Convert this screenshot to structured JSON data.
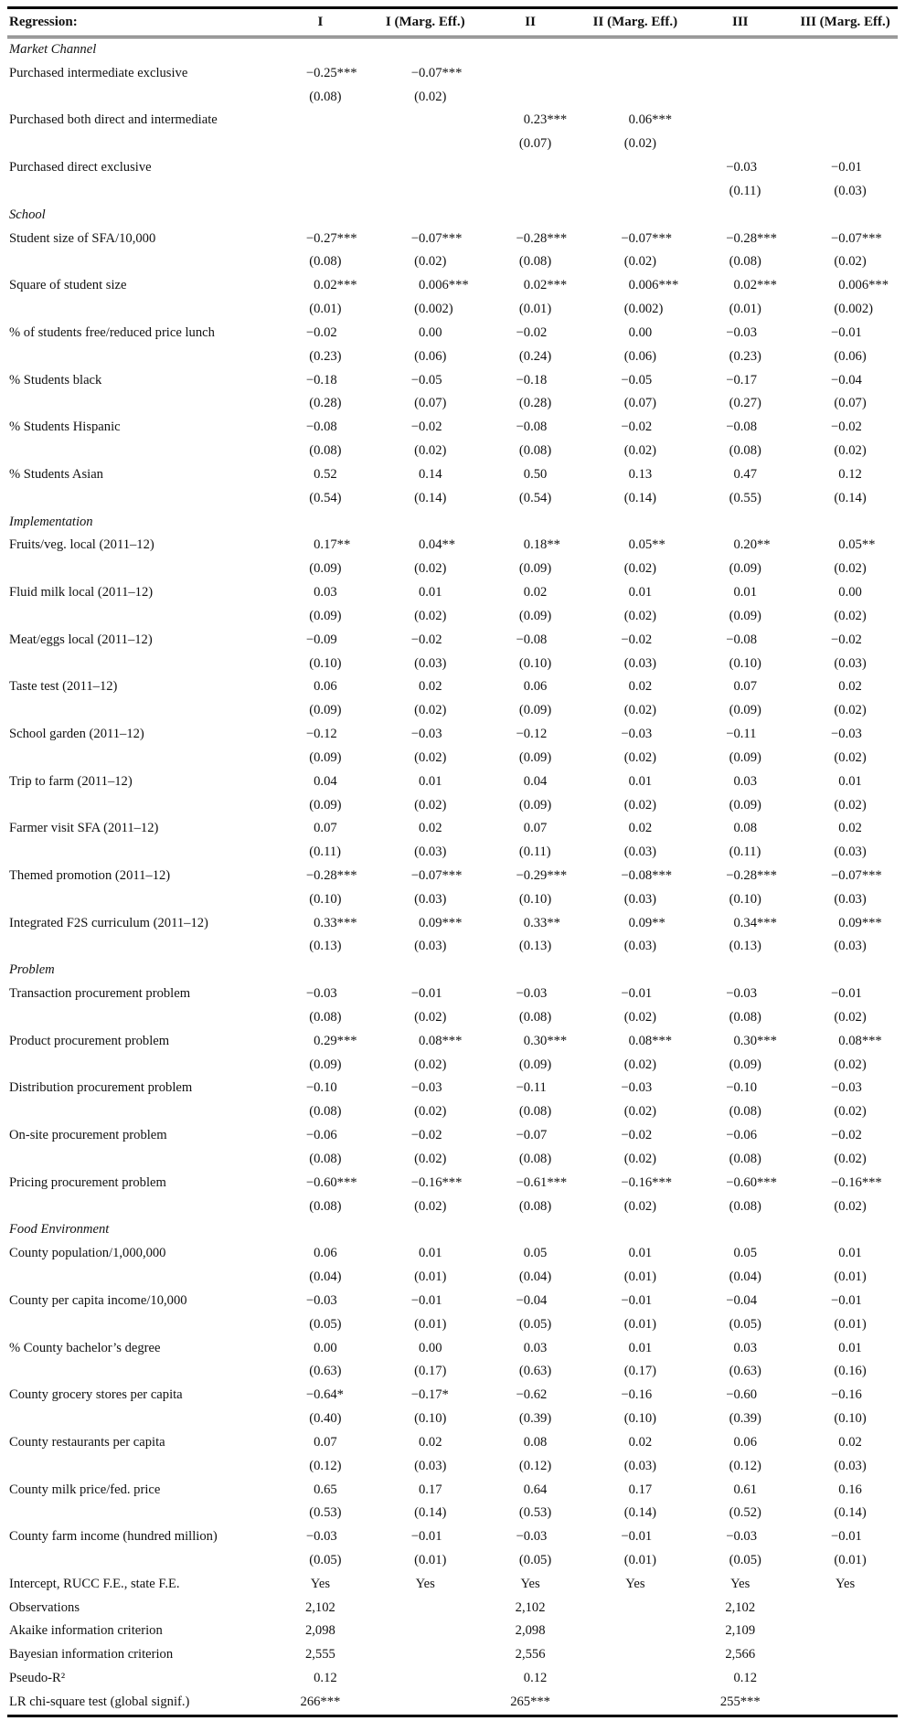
{
  "table": {
    "header": {
      "label": "Regression:",
      "cols": [
        "I",
        "I (Marg. Eff.)",
        "II",
        "II (Marg. Eff.)",
        "III",
        "III (Marg. Eff.)"
      ]
    },
    "sections": [
      {
        "title": "Market Channel",
        "rows": [
          {
            "label": "Purchased intermediate exclusive",
            "est": [
              "−0.25***",
              "−0.07***",
              "",
              "",
              "",
              ""
            ],
            "se": [
              "(0.08)",
              "(0.02)",
              "",
              "",
              "",
              ""
            ]
          },
          {
            "label": "Purchased both direct and intermediate",
            "est": [
              "",
              "",
              "0.23***",
              "0.06***",
              "",
              ""
            ],
            "se": [
              "",
              "",
              "(0.07)",
              "(0.02)",
              "",
              ""
            ]
          },
          {
            "label": "Purchased direct exclusive",
            "est": [
              "",
              "",
              "",
              "",
              "−0.03",
              "−0.01"
            ],
            "se": [
              "",
              "",
              "",
              "",
              "(0.11)",
              "(0.03)"
            ]
          }
        ]
      },
      {
        "title": "School",
        "rows": [
          {
            "label": "Student size of SFA/10,000",
            "est": [
              "−0.27***",
              "−0.07***",
              "−0.28***",
              "−0.07***",
              "−0.28***",
              "−0.07***"
            ],
            "se": [
              "(0.08)",
              "(0.02)",
              "(0.08)",
              "(0.02)",
              "(0.08)",
              "(0.02)"
            ]
          },
          {
            "label": "Square of student size",
            "est": [
              "0.02***",
              "0.006***",
              "0.02***",
              "0.006***",
              "0.02***",
              "0.006***"
            ],
            "se": [
              "(0.01)",
              "(0.002)",
              "(0.01)",
              "(0.002)",
              "(0.01)",
              "(0.002)"
            ]
          },
          {
            "label": "% of students free/reduced price lunch",
            "est": [
              "−0.02",
              "0.00",
              "−0.02",
              "0.00",
              "−0.03",
              "−0.01"
            ],
            "se": [
              "(0.23)",
              "(0.06)",
              "(0.24)",
              "(0.06)",
              "(0.23)",
              "(0.06)"
            ]
          },
          {
            "label": "% Students black",
            "est": [
              "−0.18",
              "−0.05",
              "−0.18",
              "−0.05",
              "−0.17",
              "−0.04"
            ],
            "se": [
              "(0.28)",
              "(0.07)",
              "(0.28)",
              "(0.07)",
              "(0.27)",
              "(0.07)"
            ]
          },
          {
            "label": "% Students Hispanic",
            "est": [
              "−0.08",
              "−0.02",
              "−0.08",
              "−0.02",
              "−0.08",
              "−0.02"
            ],
            "se": [
              "(0.08)",
              "(0.02)",
              "(0.08)",
              "(0.02)",
              "(0.08)",
              "(0.02)"
            ]
          },
          {
            "label": "% Students Asian",
            "est": [
              "0.52",
              "0.14",
              "0.50",
              "0.13",
              "0.47",
              "0.12"
            ],
            "se": [
              "(0.54)",
              "(0.14)",
              "(0.54)",
              "(0.14)",
              "(0.55)",
              "(0.14)"
            ]
          }
        ]
      },
      {
        "title": "Implementation",
        "rows": [
          {
            "label": "Fruits/veg. local (2011–12)",
            "est": [
              "0.17**",
              "0.04**",
              "0.18**",
              "0.05**",
              "0.20**",
              "0.05**"
            ],
            "se": [
              "(0.09)",
              "(0.02)",
              "(0.09)",
              "(0.02)",
              "(0.09)",
              "(0.02)"
            ]
          },
          {
            "label": "Fluid milk local (2011–12)",
            "est": [
              "0.03",
              "0.01",
              "0.02",
              "0.01",
              "0.01",
              "0.00"
            ],
            "se": [
              "(0.09)",
              "(0.02)",
              "(0.09)",
              "(0.02)",
              "(0.09)",
              "(0.02)"
            ]
          },
          {
            "label": "Meat/eggs local (2011–12)",
            "est": [
              "−0.09",
              "−0.02",
              "−0.08",
              "−0.02",
              "−0.08",
              "−0.02"
            ],
            "se": [
              "(0.10)",
              "(0.03)",
              "(0.10)",
              "(0.03)",
              "(0.10)",
              "(0.03)"
            ]
          },
          {
            "label": "Taste test (2011–12)",
            "est": [
              "0.06",
              "0.02",
              "0.06",
              "0.02",
              "0.07",
              "0.02"
            ],
            "se": [
              "(0.09)",
              "(0.02)",
              "(0.09)",
              "(0.02)",
              "(0.09)",
              "(0.02)"
            ]
          },
          {
            "label": "School garden (2011–12)",
            "est": [
              "−0.12",
              "−0.03",
              "−0.12",
              "−0.03",
              "−0.11",
              "−0.03"
            ],
            "se": [
              "(0.09)",
              "(0.02)",
              "(0.09)",
              "(0.02)",
              "(0.09)",
              "(0.02)"
            ]
          },
          {
            "label": "Trip to farm (2011–12)",
            "est": [
              "0.04",
              "0.01",
              "0.04",
              "0.01",
              "0.03",
              "0.01"
            ],
            "se": [
              "(0.09)",
              "(0.02)",
              "(0.09)",
              "(0.02)",
              "(0.09)",
              "(0.02)"
            ]
          },
          {
            "label": "Farmer visit SFA (2011–12)",
            "est": [
              "0.07",
              "0.02",
              "0.07",
              "0.02",
              "0.08",
              "0.02"
            ],
            "se": [
              "(0.11)",
              "(0.03)",
              "(0.11)",
              "(0.03)",
              "(0.11)",
              "(0.03)"
            ]
          },
          {
            "label": "Themed promotion (2011–12)",
            "est": [
              "−0.28***",
              "−0.07***",
              "−0.29***",
              "−0.08***",
              "−0.28***",
              "−0.07***"
            ],
            "se": [
              "(0.10)",
              "(0.03)",
              "(0.10)",
              "(0.03)",
              "(0.10)",
              "(0.03)"
            ]
          },
          {
            "label": "Integrated F2S curriculum (2011–12)",
            "est": [
              "0.33***",
              "0.09***",
              "0.33**",
              "0.09**",
              "0.34***",
              "0.09***"
            ],
            "se": [
              "(0.13)",
              "(0.03)",
              "(0.13)",
              "(0.03)",
              "(0.13)",
              "(0.03)"
            ]
          }
        ]
      },
      {
        "title": "Problem",
        "rows": [
          {
            "label": "Transaction procurement problem",
            "est": [
              "−0.03",
              "−0.01",
              "−0.03",
              "−0.01",
              "−0.03",
              "−0.01"
            ],
            "se": [
              "(0.08)",
              "(0.02)",
              "(0.08)",
              "(0.02)",
              "(0.08)",
              "(0.02)"
            ]
          },
          {
            "label": "Product procurement problem",
            "est": [
              "0.29***",
              "0.08***",
              "0.30***",
              "0.08***",
              "0.30***",
              "0.08***"
            ],
            "se": [
              "(0.09)",
              "(0.02)",
              "(0.09)",
              "(0.02)",
              "(0.09)",
              "(0.02)"
            ]
          },
          {
            "label": "Distribution procurement problem",
            "est": [
              "−0.10",
              "−0.03",
              "−0.11",
              "−0.03",
              "−0.10",
              "−0.03"
            ],
            "se": [
              "(0.08)",
              "(0.02)",
              "(0.08)",
              "(0.02)",
              "(0.08)",
              "(0.02)"
            ]
          },
          {
            "label": "On-site procurement problem",
            "est": [
              "−0.06",
              "−0.02",
              "−0.07",
              "−0.02",
              "−0.06",
              "−0.02"
            ],
            "se": [
              "(0.08)",
              "(0.02)",
              "(0.08)",
              "(0.02)",
              "(0.08)",
              "(0.02)"
            ]
          },
          {
            "label": "Pricing procurement problem",
            "est": [
              "−0.60***",
              "−0.16***",
              "−0.61***",
              "−0.16***",
              "−0.60***",
              "−0.16***"
            ],
            "se": [
              "(0.08)",
              "(0.02)",
              "(0.08)",
              "(0.02)",
              "(0.08)",
              "(0.02)"
            ]
          }
        ]
      },
      {
        "title": "Food Environment",
        "rows": [
          {
            "label": "County population/1,000,000",
            "est": [
              "0.06",
              "0.01",
              "0.05",
              "0.01",
              "0.05",
              "0.01"
            ],
            "se": [
              "(0.04)",
              "(0.01)",
              "(0.04)",
              "(0.01)",
              "(0.04)",
              "(0.01)"
            ]
          },
          {
            "label": "County per capita income/10,000",
            "est": [
              "−0.03",
              "−0.01",
              "−0.04",
              "−0.01",
              "−0.04",
              "−0.01"
            ],
            "se": [
              "(0.05)",
              "(0.01)",
              "(0.05)",
              "(0.01)",
              "(0.05)",
              "(0.01)"
            ]
          },
          {
            "label": "% County bachelor’s degree",
            "est": [
              "0.00",
              "0.00",
              "0.03",
              "0.01",
              "0.03",
              "0.01"
            ],
            "se": [
              "(0.63)",
              "(0.17)",
              "(0.63)",
              "(0.17)",
              "(0.63)",
              "(0.16)"
            ]
          },
          {
            "label": "County grocery stores per capita",
            "est": [
              "−0.64*",
              "−0.17*",
              "−0.62",
              "−0.16",
              "−0.60",
              "−0.16"
            ],
            "se": [
              "(0.40)",
              "(0.10)",
              "(0.39)",
              "(0.10)",
              "(0.39)",
              "(0.10)"
            ]
          },
          {
            "label": "County restaurants per capita",
            "est": [
              "0.07",
              "0.02",
              "0.08",
              "0.02",
              "0.06",
              "0.02"
            ],
            "se": [
              "(0.12)",
              "(0.03)",
              "(0.12)",
              "(0.03)",
              "(0.12)",
              "(0.03)"
            ]
          },
          {
            "label": "County milk price/fed. price",
            "est": [
              "0.65",
              "0.17",
              "0.64",
              "0.17",
              "0.61",
              "0.16"
            ],
            "se": [
              "(0.53)",
              "(0.14)",
              "(0.53)",
              "(0.14)",
              "(0.52)",
              "(0.14)"
            ]
          },
          {
            "label": "County farm income (hundred million)",
            "est": [
              "−0.03",
              "−0.01",
              "−0.03",
              "−0.01",
              "−0.03",
              "−0.01"
            ],
            "se": [
              "(0.05)",
              "(0.01)",
              "(0.05)",
              "(0.01)",
              "(0.05)",
              "(0.01)"
            ]
          }
        ]
      }
    ],
    "footer": [
      {
        "label": "Intercept, RUCC F.E., state F.E.",
        "vals": [
          "Yes",
          "Yes",
          "Yes",
          "Yes",
          "Yes",
          "Yes"
        ]
      },
      {
        "label": "Observations",
        "vals": [
          "2,102",
          "",
          "2,102",
          "",
          "2,102",
          ""
        ]
      },
      {
        "label": "Akaike information criterion",
        "vals": [
          "2,098",
          "",
          "2,098",
          "",
          "2,109",
          ""
        ]
      },
      {
        "label": "Bayesian information criterion",
        "vals": [
          "2,555",
          "",
          "2,556",
          "",
          "2,566",
          ""
        ]
      },
      {
        "label": "Pseudo-R²",
        "vals": [
          "0.12",
          "",
          "0.12",
          "",
          "0.12",
          ""
        ]
      },
      {
        "label": "LR chi-square test (global signif.)",
        "vals": [
          "266***",
          "",
          "265***",
          "",
          "255***",
          ""
        ]
      }
    ]
  }
}
